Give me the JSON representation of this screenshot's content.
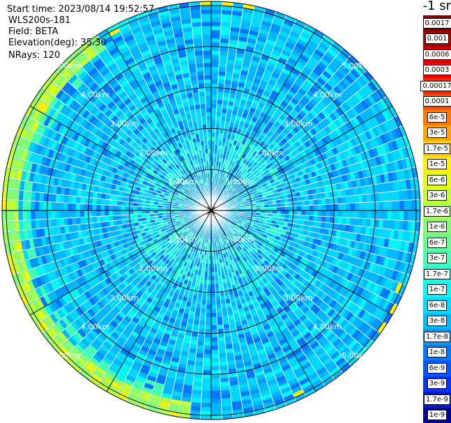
{
  "info": {
    "start_time": "Start time: 2023/08/14 19:52:57",
    "device": "WLS200s-181",
    "field": "Field: BETA",
    "elevation": "Elevation(deg): 35.30",
    "nrays": "NRays: 120"
  },
  "colorbar": {
    "unit_label": "-1 sr",
    "levels": [
      {
        "label": "0.0017",
        "color": "#7f0000"
      },
      {
        "label": "0.001",
        "color": "#a80000"
      },
      {
        "label": "0.0006",
        "color": "#d00000"
      },
      {
        "label": "0.0003",
        "color": "#f20000"
      },
      {
        "label": "0.00017",
        "color": "#ff2200"
      },
      {
        "label": "0.0001",
        "color": "#ff4d00"
      },
      {
        "label": "6e-5",
        "color": "#ff7800"
      },
      {
        "label": "3e-5",
        "color": "#ffa300"
      },
      {
        "label": "1.7e-5",
        "color": "#ffcf00"
      },
      {
        "label": "1e-5",
        "color": "#fff000"
      },
      {
        "label": "6e-6",
        "color": "#e4ff13"
      },
      {
        "label": "3e-6",
        "color": "#c4ff33"
      },
      {
        "label": "1.7e-6",
        "color": "#a4ff53"
      },
      {
        "label": "1e-6",
        "color": "#84ff73"
      },
      {
        "label": "6e-7",
        "color": "#63ff94"
      },
      {
        "label": "3e-7",
        "color": "#43ffb4"
      },
      {
        "label": "1.7e-7",
        "color": "#23ffd4"
      },
      {
        "label": "1e-7",
        "color": "#03f8f4"
      },
      {
        "label": "6e-8",
        "color": "#00d8ff"
      },
      {
        "label": "3e-8",
        "color": "#00b8ff"
      },
      {
        "label": "1.7e-8",
        "color": "#0098ff"
      },
      {
        "label": "1e-8",
        "color": "#0078ff"
      },
      {
        "label": "6e-9",
        "color": "#0058ff"
      },
      {
        "label": "3e-9",
        "color": "#0038ff"
      },
      {
        "label": "1.7e-9",
        "color": "#0018e0"
      },
      {
        "label": "1e-9",
        "color": "#00009a"
      }
    ]
  },
  "chart_data": {
    "type": "heatmap",
    "projection": "polar (PPI)",
    "rays": 120,
    "range_ring_labels": [
      "1.00km",
      "2.00km",
      "3.00km",
      "4.00km",
      "5.00km"
    ],
    "range_rings_km": [
      1,
      2,
      3,
      4,
      5
    ],
    "max_range_km": 5.1,
    "dominant_level": "3e-8",
    "edge_feature": "higher backscatter (1.7e-7 to 6e-6) near max range on the west to south-west edge"
  }
}
